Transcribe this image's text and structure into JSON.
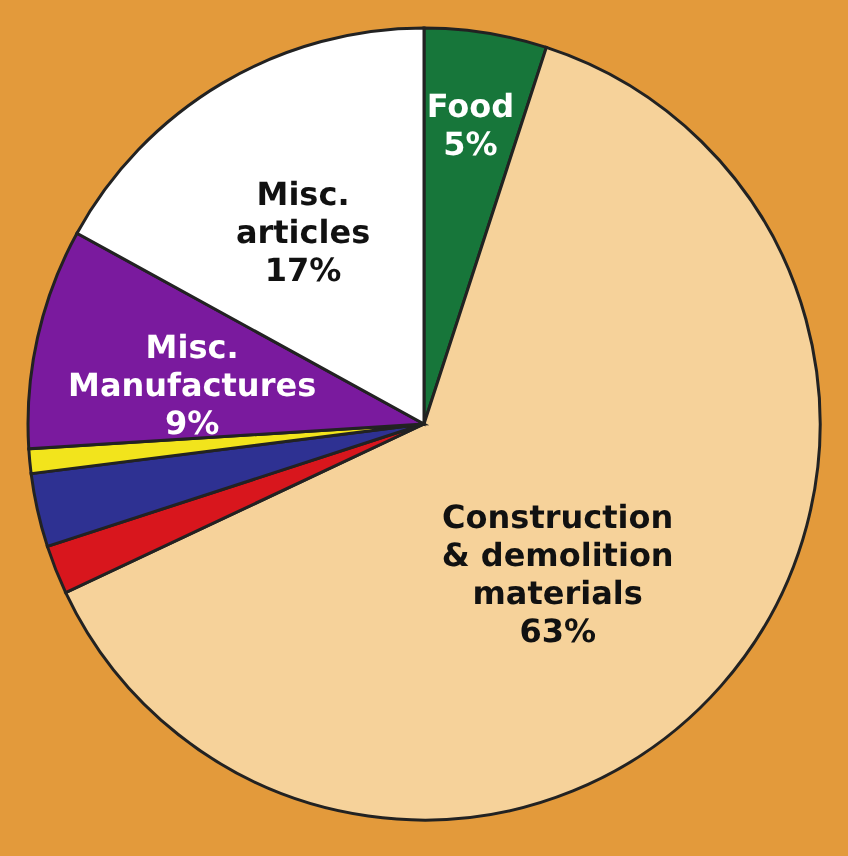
{
  "chart_data": {
    "type": "pie",
    "categories": [
      "Food",
      "Construction & demolition materials",
      null,
      null,
      null,
      "Misc. Manufactures",
      "Misc. articles"
    ],
    "values": [
      5,
      63,
      2,
      3,
      1,
      9,
      17
    ],
    "value_labels": [
      "5%",
      "63%",
      null,
      null,
      null,
      "9%",
      "17%"
    ],
    "colors": [
      "#17763a",
      "#f6d29a",
      "#d8161d",
      "#2e3192",
      "#f2e41c",
      "#7a1a9e",
      "#ffffff"
    ]
  }
}
